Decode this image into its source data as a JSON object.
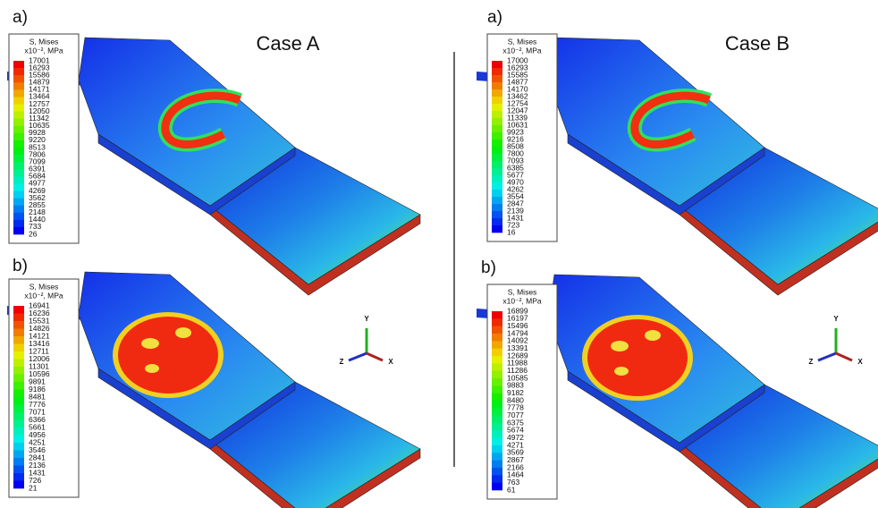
{
  "figure": {
    "cases": [
      "Case A",
      "Case B"
    ],
    "axes": [
      "Y",
      "Z",
      "X"
    ],
    "panels": [
      {
        "label": "a)",
        "legend": {
          "title": "S, Mises",
          "unit": "x10⁻², MPa",
          "values": [
            17001,
            16293,
            15586,
            14879,
            14171,
            13464,
            12757,
            12050,
            11342,
            10635,
            9928,
            9220,
            8513,
            7806,
            7099,
            6391,
            5684,
            4977,
            4269,
            3562,
            2855,
            2148,
            1440,
            733,
            26
          ]
        }
      },
      {
        "label": "b)",
        "legend": {
          "title": "S, Mises",
          "unit": "x10⁻², MPa",
          "values": [
            16941,
            16236,
            15531,
            14826,
            14121,
            13416,
            12711,
            12006,
            11301,
            10596,
            9891,
            9186,
            8481,
            7776,
            7071,
            6366,
            5661,
            4956,
            4251,
            3546,
            2841,
            2136,
            1431,
            726,
            21
          ]
        }
      },
      {
        "label": "a)",
        "legend": {
          "title": "S, Mises",
          "unit": "x10⁻², MPa",
          "values": [
            17000,
            16293,
            15585,
            14877,
            14170,
            13462,
            12754,
            12047,
            11339,
            10631,
            9923,
            9216,
            8508,
            7800,
            7093,
            6385,
            5677,
            4970,
            4262,
            3554,
            2847,
            2139,
            1431,
            723,
            16
          ]
        }
      },
      {
        "label": "b)",
        "legend": {
          "title": "S, Mises",
          "unit": "x10⁻², MPa",
          "values": [
            16899,
            16197,
            15496,
            14794,
            14092,
            13391,
            12689,
            11988,
            11286,
            10585,
            9883,
            9182,
            8480,
            7778,
            7077,
            6375,
            5674,
            4972,
            4271,
            3569,
            2867,
            2166,
            1464,
            763,
            61
          ]
        }
      }
    ]
  }
}
